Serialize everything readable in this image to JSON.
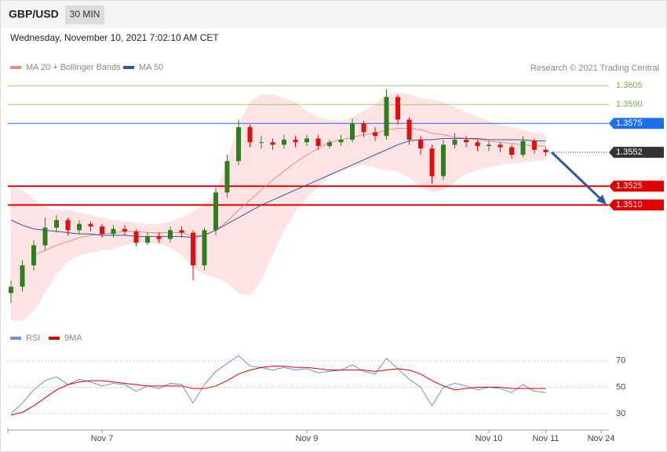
{
  "header": {
    "symbol": "GBP/USD",
    "timeframe": "30 MIN",
    "datetime": "Wednesday, November 10, 2021 7:02:10 AM CET"
  },
  "chart_data": [
    {
      "type": "candlestick",
      "credit": "Research © 2021 Trading Central",
      "up_color": "#2f7d1f",
      "down_color": "#e01010",
      "ylim": [
        1.3414,
        1.3617
      ],
      "open": [
        1.344,
        1.3445,
        1.3462,
        1.3478,
        1.3492,
        1.3498,
        1.349,
        1.3495,
        1.3493,
        1.3487,
        1.3491,
        1.3489,
        1.348,
        1.3485,
        1.3483,
        1.349,
        1.3488,
        1.3462,
        1.349,
        1.352,
        1.3545,
        1.3572,
        1.356,
        1.356,
        1.3558,
        1.3562,
        1.356,
        1.3563,
        1.3557,
        1.356,
        1.3562,
        1.3575,
        1.3568,
        1.3565,
        1.3596,
        1.3578,
        1.3562,
        1.3555,
        1.3533,
        1.3558,
        1.3562,
        1.356,
        1.3557,
        1.3558,
        1.3556,
        1.355,
        1.3561,
        1.3554
      ],
      "high": [
        1.345,
        1.3466,
        1.3482,
        1.35,
        1.3502,
        1.35,
        1.3498,
        1.3497,
        1.3495,
        1.3494,
        1.3494,
        1.3491,
        1.3488,
        1.3488,
        1.3493,
        1.3493,
        1.349,
        1.3492,
        1.3524,
        1.355,
        1.3578,
        1.3574,
        1.3565,
        1.3563,
        1.3566,
        1.3565,
        1.3566,
        1.3566,
        1.3562,
        1.3566,
        1.3579,
        1.3577,
        1.3572,
        1.3602,
        1.3598,
        1.358,
        1.3565,
        1.3558,
        1.3562,
        1.3567,
        1.3565,
        1.3562,
        1.3561,
        1.356,
        1.3558,
        1.3565,
        1.3563,
        1.3556
      ],
      "low": [
        1.3432,
        1.3441,
        1.3458,
        1.3474,
        1.3488,
        1.3486,
        1.3487,
        1.3489,
        1.3484,
        1.3484,
        1.3486,
        1.3477,
        1.3478,
        1.348,
        1.348,
        1.3484,
        1.345,
        1.3458,
        1.3486,
        1.3516,
        1.3542,
        1.3556,
        1.3555,
        1.3554,
        1.3555,
        1.3556,
        1.3557,
        1.3554,
        1.3555,
        1.3557,
        1.356,
        1.3564,
        1.3561,
        1.3562,
        1.3574,
        1.3558,
        1.355,
        1.3527,
        1.353,
        1.3555,
        1.3556,
        1.3553,
        1.3553,
        1.3552,
        1.3547,
        1.3548,
        1.3551,
        1.3549
      ],
      "close": [
        1.3445,
        1.3462,
        1.3478,
        1.3492,
        1.3498,
        1.349,
        1.3495,
        1.3493,
        1.3487,
        1.3491,
        1.3489,
        1.348,
        1.3485,
        1.3483,
        1.349,
        1.3488,
        1.3462,
        1.349,
        1.352,
        1.3545,
        1.3572,
        1.356,
        1.356,
        1.3558,
        1.3562,
        1.356,
        1.3563,
        1.3557,
        1.356,
        1.3562,
        1.3575,
        1.3568,
        1.3565,
        1.3596,
        1.3578,
        1.3562,
        1.3555,
        1.3533,
        1.3558,
        1.3562,
        1.356,
        1.3557,
        1.3558,
        1.3556,
        1.355,
        1.3561,
        1.3554,
        1.3552
      ],
      "series": [
        {
          "name": "MA 20 + Bollinger Bands",
          "color": "#f08a80",
          "band_color": "#fde3e3",
          "values": [
            null,
            null,
            1.347,
            1.3474,
            1.3478,
            1.3481,
            1.3484,
            1.3486,
            1.3487,
            1.3488,
            1.3489,
            1.3489,
            1.3488,
            1.3488,
            1.3488,
            1.3488,
            1.3485,
            1.3486,
            1.349,
            1.3497,
            1.3506,
            1.3514,
            1.3522,
            1.353,
            1.3537,
            1.3544,
            1.355,
            1.3555,
            1.356,
            1.3562,
            1.3564,
            1.3566,
            1.3567,
            1.357,
            1.3571,
            1.3571,
            1.357,
            1.3567,
            1.3566,
            1.3564,
            1.3563,
            1.3562,
            1.3561,
            1.356,
            1.3559,
            1.3558,
            1.3557,
            1.3557
          ],
          "upper": [
            1.3525,
            1.3522,
            1.3515,
            1.3508,
            1.3506,
            1.3506,
            1.3504,
            1.3502,
            1.35,
            1.3498,
            1.3497,
            1.3496,
            1.3495,
            1.3495,
            1.3497,
            1.35,
            1.3505,
            1.351,
            1.352,
            1.3545,
            1.3575,
            1.3592,
            1.3598,
            1.3598,
            1.3595,
            1.3592,
            1.3585,
            1.358,
            1.3578,
            1.3577,
            1.358,
            1.3585,
            1.359,
            1.3598,
            1.36,
            1.3598,
            1.3595,
            1.3594,
            1.3592,
            1.3588,
            1.3584,
            1.358,
            1.3577,
            1.3574,
            1.3572,
            1.357,
            1.3568,
            1.3566
          ],
          "lower": [
            1.3418,
            1.3418,
            1.3425,
            1.344,
            1.3455,
            1.3465,
            1.347,
            1.3472,
            1.3474,
            1.3475,
            1.3478,
            1.348,
            1.348,
            1.3479,
            1.3476,
            1.347,
            1.346,
            1.3455,
            1.3452,
            1.3448,
            1.344,
            1.3438,
            1.345,
            1.347,
            1.349,
            1.3505,
            1.3515,
            1.3525,
            1.3533,
            1.3537,
            1.354,
            1.3542,
            1.354,
            1.3538,
            1.3537,
            1.3532,
            1.3525,
            1.352,
            1.3522,
            1.3528,
            1.3535,
            1.3538,
            1.354,
            1.3542,
            1.3543,
            1.3544,
            1.3545,
            1.3546
          ]
        },
        {
          "name": "MA 50",
          "color": "#2d5a9e",
          "values": [
            1.3498,
            1.3494,
            1.3491,
            1.349,
            1.3489,
            1.3488,
            1.3487,
            1.3487,
            1.3486,
            1.3486,
            1.3486,
            1.3485,
            1.3485,
            1.3485,
            1.3485,
            1.3485,
            1.3484,
            1.3486,
            1.349,
            1.3495,
            1.35,
            1.3505,
            1.351,
            1.3514,
            1.3518,
            1.3522,
            1.3526,
            1.353,
            1.3534,
            1.3538,
            1.3542,
            1.3546,
            1.355,
            1.3554,
            1.3558,
            1.3561,
            1.3562,
            1.3562,
            1.3563,
            1.3563,
            1.3563,
            1.3563,
            1.3562,
            1.3562,
            1.3562,
            1.3562,
            1.3561,
            1.3561
          ]
        }
      ],
      "levels": [
        {
          "value": 1.3605,
          "color": "#7cb342",
          "tag": false
        },
        {
          "value": 1.359,
          "label": "1.3590",
          "color": "#7cb342",
          "tag": false
        },
        {
          "value": 1.3575,
          "color": "#1e6fe8",
          "tag": true
        },
        {
          "value": 1.3552,
          "color": "#333333",
          "tag": true,
          "current": true
        },
        {
          "value": 1.3525,
          "color": "#e00000",
          "tag": true
        },
        {
          "value": 1.351,
          "label": "1.3510",
          "color": "#e00000",
          "tag": true
        }
      ]
    },
    {
      "type": "line",
      "ylim": [
        20,
        80
      ],
      "yticks": [
        30,
        50,
        70
      ],
      "grid": true,
      "categories": [
        null,
        null,
        null,
        null,
        null,
        null,
        null,
        null,
        "Nov 7",
        null,
        null,
        null,
        null,
        null,
        null,
        null,
        null,
        null,
        null,
        null,
        null,
        null,
        null,
        null,
        null,
        null,
        "Nov 9",
        null,
        null,
        null,
        null,
        null,
        null,
        null,
        null,
        null,
        null,
        null,
        null,
        null,
        null,
        null,
        "Nov 10",
        null,
        null,
        null,
        null,
        "Nov 11"
      ],
      "x_end_label": "Nov 24",
      "series": [
        {
          "name": "RSI",
          "color": "#6f8fd8",
          "values": [
            30,
            38,
            48,
            55,
            58,
            52,
            56,
            54,
            51,
            53,
            52,
            47,
            51,
            49,
            53,
            52,
            38,
            52,
            62,
            68,
            74,
            66,
            65,
            63,
            65,
            63,
            64,
            61,
            62,
            63,
            67,
            62,
            60,
            72,
            64,
            56,
            50,
            36,
            50,
            53,
            51,
            48,
            50,
            49,
            46,
            52,
            47,
            46
          ]
        },
        {
          "name": "9MA",
          "color": "#e00000",
          "values": [
            29,
            31,
            36,
            42,
            48,
            52,
            54,
            55,
            55,
            54,
            53,
            52,
            51,
            51,
            51,
            51,
            49,
            49,
            51,
            55,
            60,
            63,
            65,
            66,
            66,
            65,
            65,
            64,
            63,
            63,
            63,
            63,
            62,
            63,
            64,
            63,
            60,
            55,
            51,
            48,
            49,
            50,
            50,
            50,
            49,
            49,
            49,
            49
          ]
        }
      ]
    }
  ]
}
